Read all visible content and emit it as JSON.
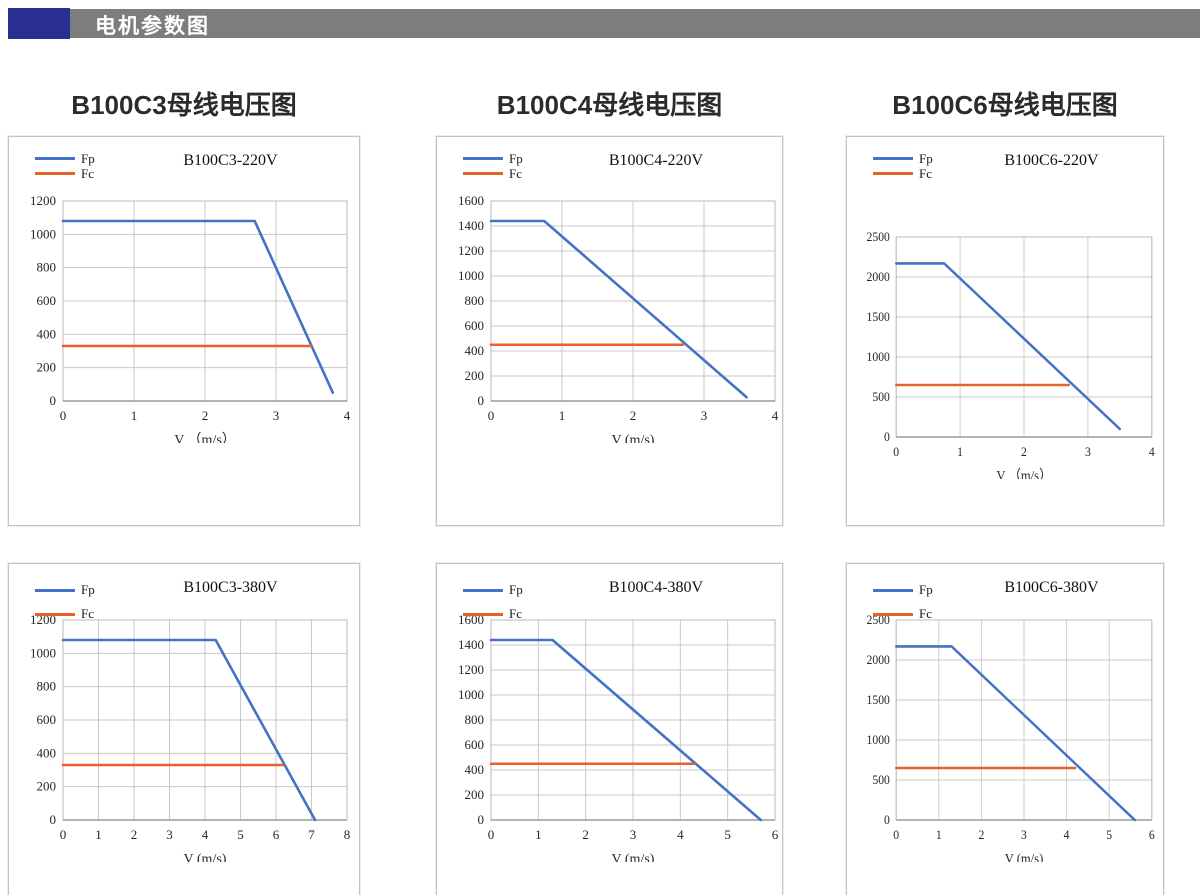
{
  "header": {
    "title": "电机参数图",
    "bar_color": "#7d7d7d",
    "accent_color": "#2b2f94"
  },
  "section_titles": [
    "B100C3母线电压图",
    "B100C4母线电压图",
    "B100C6母线电压图"
  ],
  "legend": {
    "fp_label": "Fp",
    "fc_label": "Fc"
  },
  "colors": {
    "fp": "#4472c4",
    "fc": "#e8602c",
    "grid": "#c9c9c9",
    "axis": "#9a9a9a"
  },
  "chart_data": [
    {
      "type": "line",
      "title": "B100C3-220V",
      "xlabel": "V （m/s）",
      "xlim": [
        0,
        4
      ],
      "xstep": 1,
      "ylim": [
        0,
        1200
      ],
      "ystep": 200,
      "grid": true,
      "series": [
        {
          "name": "Fp",
          "color_key": "fp",
          "points": [
            [
              0,
              1080
            ],
            [
              2.7,
              1080
            ],
            [
              3.8,
              50
            ]
          ]
        },
        {
          "name": "Fc",
          "color_key": "fc",
          "points": [
            [
              0,
              330
            ],
            [
              3.5,
              330
            ]
          ]
        }
      ]
    },
    {
      "type": "line",
      "title": "B100C4-220V",
      "xlabel": "V (m/s)",
      "xlim": [
        0,
        4
      ],
      "xstep": 1,
      "ylim": [
        0,
        1600
      ],
      "ystep": 200,
      "grid": true,
      "series": [
        {
          "name": "Fp",
          "color_key": "fp",
          "points": [
            [
              0,
              1440
            ],
            [
              0.75,
              1440
            ],
            [
              3.6,
              30
            ]
          ]
        },
        {
          "name": "Fc",
          "color_key": "fc",
          "points": [
            [
              0,
              450
            ],
            [
              2.7,
              450
            ]
          ]
        }
      ]
    },
    {
      "type": "line",
      "title": "B100C6-220V",
      "xlabel": "V （m/s）",
      "xlim": [
        0,
        4
      ],
      "xstep": 1,
      "ylim": [
        0,
        2500
      ],
      "ystep": 500,
      "grid": true,
      "series": [
        {
          "name": "Fp",
          "color_key": "fp",
          "points": [
            [
              0,
              2170
            ],
            [
              0.75,
              2170
            ],
            [
              3.5,
              100
            ]
          ]
        },
        {
          "name": "Fc",
          "color_key": "fc",
          "points": [
            [
              0,
              650
            ],
            [
              2.7,
              650
            ]
          ]
        }
      ]
    },
    {
      "type": "line",
      "title": "B100C3-380V",
      "xlabel": "V (m/s)",
      "xlim": [
        0,
        8
      ],
      "xstep": 1,
      "ylim": [
        0,
        1200
      ],
      "ystep": 200,
      "grid": true,
      "series": [
        {
          "name": "Fp",
          "color_key": "fp",
          "points": [
            [
              0,
              1080
            ],
            [
              4.3,
              1080
            ],
            [
              7.1,
              0
            ]
          ]
        },
        {
          "name": "Fc",
          "color_key": "fc",
          "points": [
            [
              0,
              330
            ],
            [
              6.2,
              330
            ]
          ]
        }
      ]
    },
    {
      "type": "line",
      "title": "B100C4-380V",
      "xlabel": "V (m/s)",
      "xlim": [
        0,
        6
      ],
      "xstep": 1,
      "ylim": [
        0,
        1600
      ],
      "ystep": 200,
      "grid": true,
      "series": [
        {
          "name": "Fp",
          "color_key": "fp",
          "points": [
            [
              0,
              1440
            ],
            [
              1.3,
              1440
            ],
            [
              5.7,
              0
            ]
          ]
        },
        {
          "name": "Fc",
          "color_key": "fc",
          "points": [
            [
              0,
              450
            ],
            [
              4.3,
              450
            ]
          ]
        }
      ]
    },
    {
      "type": "line",
      "title": "B100C6-380V",
      "xlabel": "V (m/s)",
      "xlim": [
        0,
        6
      ],
      "xstep": 1,
      "ylim": [
        0,
        2500
      ],
      "ystep": 500,
      "grid": true,
      "series": [
        {
          "name": "Fp",
          "color_key": "fp",
          "points": [
            [
              0,
              2170
            ],
            [
              1.3,
              2170
            ],
            [
              5.6,
              0
            ]
          ]
        },
        {
          "name": "Fc",
          "color_key": "fc",
          "points": [
            [
              0,
              650
            ],
            [
              4.2,
              650
            ]
          ]
        }
      ]
    }
  ]
}
